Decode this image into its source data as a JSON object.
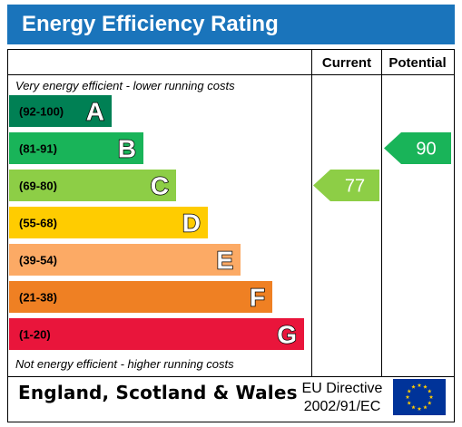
{
  "header": {
    "title": "Energy Efficiency Rating"
  },
  "columns": {
    "current": "Current",
    "potential": "Potential"
  },
  "chart_data": {
    "type": "bar",
    "top_note": "Very energy efficient - lower running costs",
    "bottom_note": "Not energy efficient - higher running costs",
    "bands": [
      {
        "range": "(92-100)",
        "letter": "A",
        "color": "#008054"
      },
      {
        "range": "(81-91)",
        "letter": "B",
        "color": "#19b459"
      },
      {
        "range": "(69-80)",
        "letter": "C",
        "color": "#8dce46"
      },
      {
        "range": "(55-68)",
        "letter": "D",
        "color": "#ffcc00"
      },
      {
        "range": "(39-54)",
        "letter": "E",
        "color": "#fcaa65"
      },
      {
        "range": "(21-38)",
        "letter": "F",
        "color": "#ef8023"
      },
      {
        "range": "(1-20)",
        "letter": "G",
        "color": "#e9153b"
      }
    ],
    "current": {
      "value": 77,
      "band": "C",
      "color": "#8dce46"
    },
    "potential": {
      "value": 90,
      "band": "B",
      "color": "#19b459"
    }
  },
  "footer": {
    "region": "England, Scotland & Wales",
    "directive_line1": "EU Directive",
    "directive_line2": "2002/91/EC"
  },
  "eu_flag": {
    "icon": "eu-flag-icon",
    "background": "#003399",
    "stars": "#ffcc00"
  }
}
